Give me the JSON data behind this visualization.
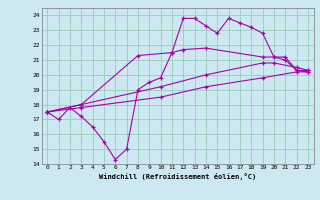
{
  "xlabel": "Windchill (Refroidissement éolien,°C)",
  "bg_color": "#cce8f0",
  "line_color": "#aa00aa",
  "grid_color": "#99ccbb",
  "ylim": [
    14,
    24.5
  ],
  "xlim": [
    -0.5,
    23.5
  ],
  "yticks": [
    14,
    15,
    16,
    17,
    18,
    19,
    20,
    21,
    22,
    23,
    24
  ],
  "xticks": [
    0,
    1,
    2,
    3,
    4,
    5,
    6,
    7,
    8,
    9,
    10,
    11,
    12,
    13,
    14,
    15,
    16,
    17,
    18,
    19,
    20,
    21,
    22,
    23
  ],
  "line1_x": [
    0,
    1,
    2,
    3,
    4,
    5,
    6,
    7,
    8,
    9,
    10,
    11,
    12,
    13,
    14,
    15,
    16,
    17,
    18,
    19,
    20,
    21,
    22,
    23
  ],
  "line1_y": [
    17.5,
    17.0,
    17.8,
    17.2,
    16.5,
    15.5,
    14.3,
    15.0,
    19.0,
    19.5,
    19.8,
    21.5,
    23.8,
    23.8,
    23.3,
    22.8,
    23.8,
    23.5,
    23.2,
    22.8,
    21.2,
    21.0,
    20.3,
    20.3
  ],
  "line2_x": [
    0,
    3,
    8,
    11,
    12,
    14,
    19,
    20,
    21,
    22,
    23
  ],
  "line2_y": [
    17.5,
    18.0,
    21.3,
    21.5,
    21.7,
    21.8,
    21.2,
    21.2,
    21.2,
    20.3,
    20.2
  ],
  "line3_x": [
    0,
    3,
    10,
    14,
    19,
    20,
    22,
    23
  ],
  "line3_y": [
    17.5,
    18.0,
    19.2,
    20.0,
    20.8,
    20.8,
    20.5,
    20.3
  ],
  "line4_x": [
    0,
    3,
    10,
    14,
    19,
    22,
    23
  ],
  "line4_y": [
    17.5,
    17.8,
    18.5,
    19.2,
    19.8,
    20.2,
    20.2
  ]
}
